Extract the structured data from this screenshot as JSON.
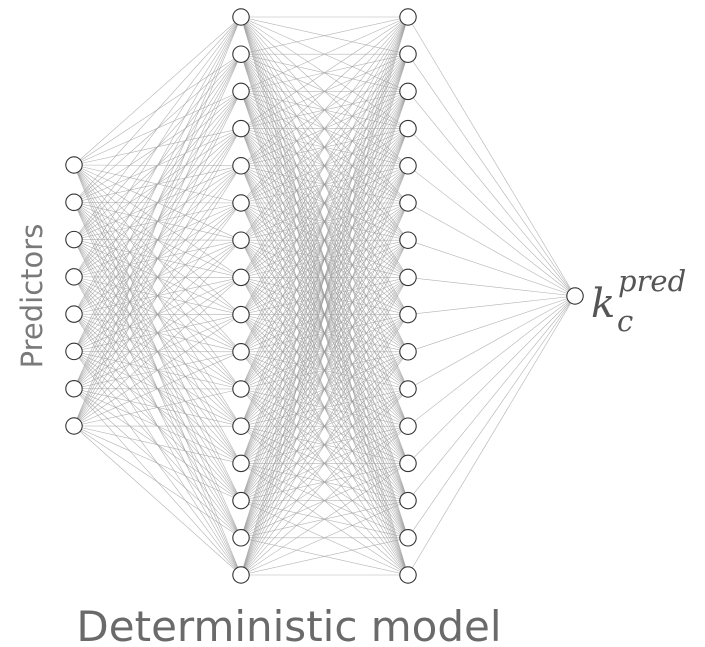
{
  "diagram": {
    "type": "neural-network",
    "input_label": "Predictors",
    "caption": "Deterministic model",
    "output_label": {
      "base": "k",
      "superscript": "pred",
      "subscript": "c"
    },
    "layers": [
      {
        "role": "input",
        "node_count": 8
      },
      {
        "role": "hidden",
        "node_count": 16
      },
      {
        "role": "hidden",
        "node_count": 16
      },
      {
        "role": "output",
        "node_count": 1
      }
    ],
    "connectivity": "fully-connected",
    "colors": {
      "edge": "#9a9a9a",
      "node_stroke": "#333333",
      "node_fill": "#ffffff",
      "label_text": "#7a7a7a"
    }
  }
}
